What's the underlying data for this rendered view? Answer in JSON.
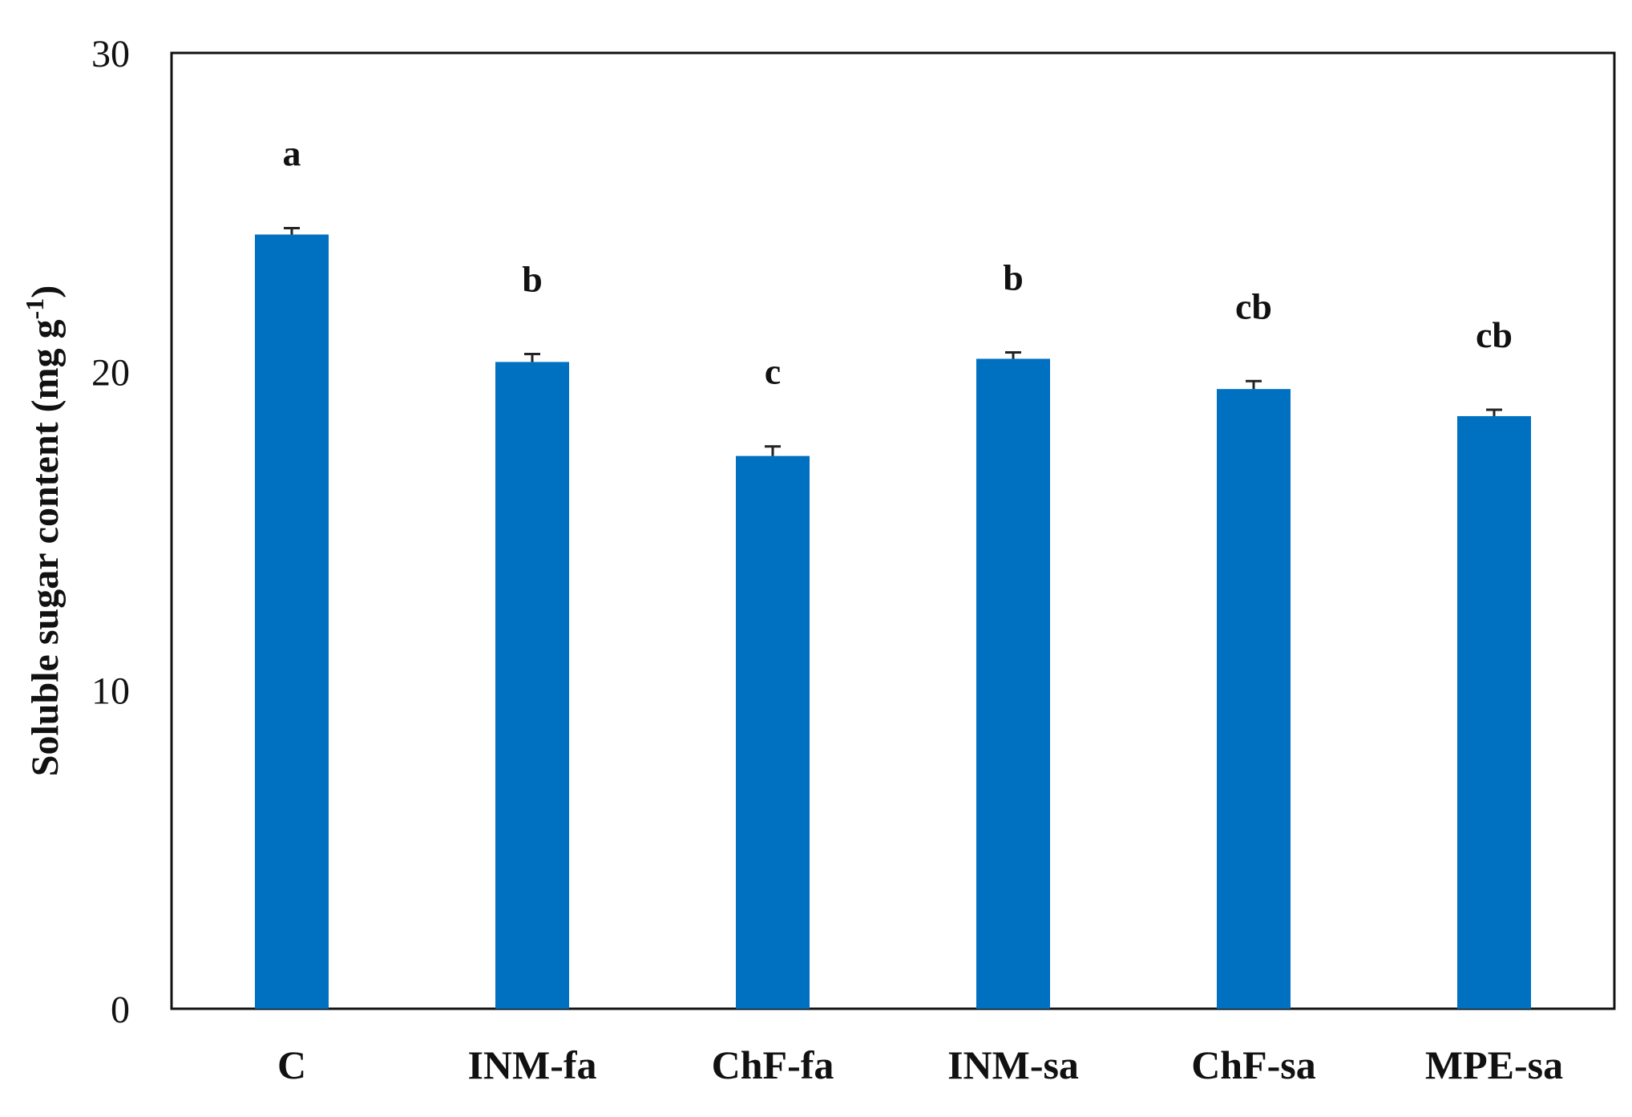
{
  "chart_data": {
    "type": "bar",
    "categories": [
      "C",
      "INM-fa",
      "ChF-fa",
      "INM-sa",
      "ChF-sa",
      "MPE-sa"
    ],
    "values": [
      24.3,
      20.3,
      17.35,
      20.4,
      19.45,
      18.6
    ],
    "errors": [
      0.2,
      0.25,
      0.3,
      0.2,
      0.25,
      0.2
    ],
    "significance_letters": [
      "a",
      "b",
      "c",
      "b",
      "cb",
      "cb"
    ],
    "title": "",
    "xlabel": "",
    "ylabel": "Soluble sugar content (mg g",
    "ylabel_superscript": "-1",
    "ylabel_suffix": ")",
    "ylim": [
      0,
      30
    ],
    "yticks": [
      "0",
      "10",
      "20",
      "30"
    ],
    "grid": false,
    "bar_color": "#0070c0"
  }
}
